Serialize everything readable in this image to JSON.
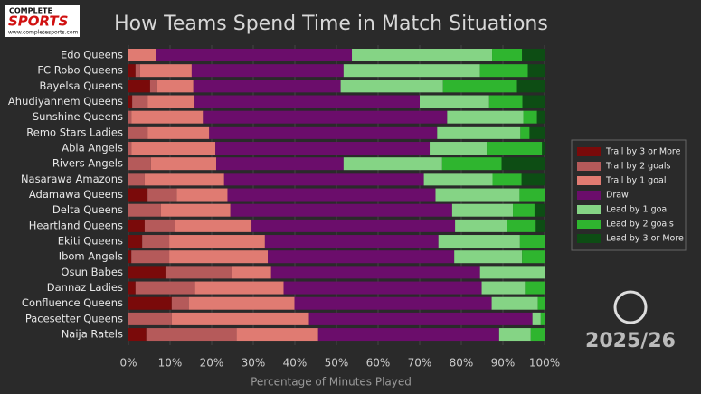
{
  "chart_data": {
    "type": "stacked-barh",
    "title": "How Teams Spend Time in Match Situations",
    "xlabel": "Percentage of Minutes Played",
    "categories": [
      "Edo Queens",
      "FC Robo Queens",
      "Bayelsa Queens",
      "Ahudiyannem Queens",
      "Sunshine Queens",
      "Remo Stars Ladies",
      "Abia Angels",
      "Rivers Angels",
      "Nasarawa Amazons",
      "Adamawa Queens",
      "Delta Queens",
      "Heartland Queens",
      "Ekiti Queens",
      "Ibom Angels",
      "Osun Babes",
      "Dannaz Ladies",
      "Confluence Queens",
      "Pacesetter Queens",
      "Naija Ratels"
    ],
    "series": [
      {
        "name": "Trail by 3 or More",
        "color": "#7a0a0a",
        "values": [
          0,
          1.7,
          5.2,
          0.9,
          0,
          0,
          0,
          0,
          0,
          4.6,
          0,
          3.9,
          3.3,
          0.7,
          8.9,
          1.7,
          10.4,
          0,
          4.3
        ]
      },
      {
        "name": "Trail by 2 goals",
        "color": "#b55a5a",
        "values": [
          0,
          1.1,
          1.7,
          3.7,
          0.7,
          4.6,
          0.7,
          5.4,
          3.9,
          7,
          7.8,
          7.4,
          6.5,
          9.1,
          16.1,
          14.3,
          4.1,
          10.4,
          21.7
        ]
      },
      {
        "name": "Trail by 1 goal",
        "color": "#e07b72",
        "values": [
          6.7,
          12.4,
          8.7,
          11.3,
          17.2,
          14.8,
          20.2,
          15.7,
          19.1,
          12.2,
          16.7,
          18.3,
          23,
          23.7,
          9.3,
          21.3,
          25.4,
          33,
          19.6
        ]
      },
      {
        "name": "Draw",
        "color": "#6b0d6b",
        "values": [
          47,
          36.5,
          35.4,
          54.1,
          58.7,
          54.8,
          51.5,
          30.6,
          48,
          50,
          53.3,
          48.9,
          41.7,
          44.8,
          50.2,
          47.6,
          47.4,
          53.7,
          43.5
        ]
      },
      {
        "name": "Lead by 1 goal",
        "color": "#85d485",
        "values": [
          33.7,
          32.8,
          24.6,
          16.7,
          18.3,
          20,
          13.7,
          23.7,
          16.5,
          20.2,
          14.6,
          12.4,
          19.6,
          16.3,
          15.5,
          10.4,
          11.1,
          2,
          7.6
        ]
      },
      {
        "name": "Lead by 2 goals",
        "color": "#2fb52f",
        "values": [
          7.2,
          11.5,
          17.8,
          8,
          3.3,
          2.2,
          13.3,
          14.3,
          7,
          6,
          5.2,
          7,
          5.9,
          5.4,
          0,
          4.7,
          1.6,
          0.9,
          3.3
        ]
      },
      {
        "name": "Lead by 3 or More",
        "color": "#0d4d14",
        "values": [
          5.4,
          4,
          6.6,
          5.3,
          1.8,
          3.6,
          0.6,
          10.3,
          5.5,
          0,
          2.4,
          2.1,
          0,
          0,
          0,
          0,
          0,
          0,
          0
        ]
      }
    ],
    "xlim": [
      0,
      100
    ],
    "xticks": [
      {
        "value": 0,
        "label": "0%"
      },
      {
        "value": 10,
        "label": "10%"
      },
      {
        "value": 20,
        "label": "20%"
      },
      {
        "value": 30,
        "label": "30%"
      },
      {
        "value": 40,
        "label": "40%"
      },
      {
        "value": 50,
        "label": "50%"
      },
      {
        "value": 60,
        "label": "60%"
      },
      {
        "value": 70,
        "label": "70%"
      },
      {
        "value": 80,
        "label": "80%"
      },
      {
        "value": 90,
        "label": "90%"
      },
      {
        "value": 100,
        "label": "100%"
      }
    ],
    "grid": true,
    "legend": "right"
  },
  "brand": {
    "name_top": "COMPLETE",
    "name_main": "SPORTS",
    "url": "www.completesports.com",
    "season": "2025/26"
  }
}
